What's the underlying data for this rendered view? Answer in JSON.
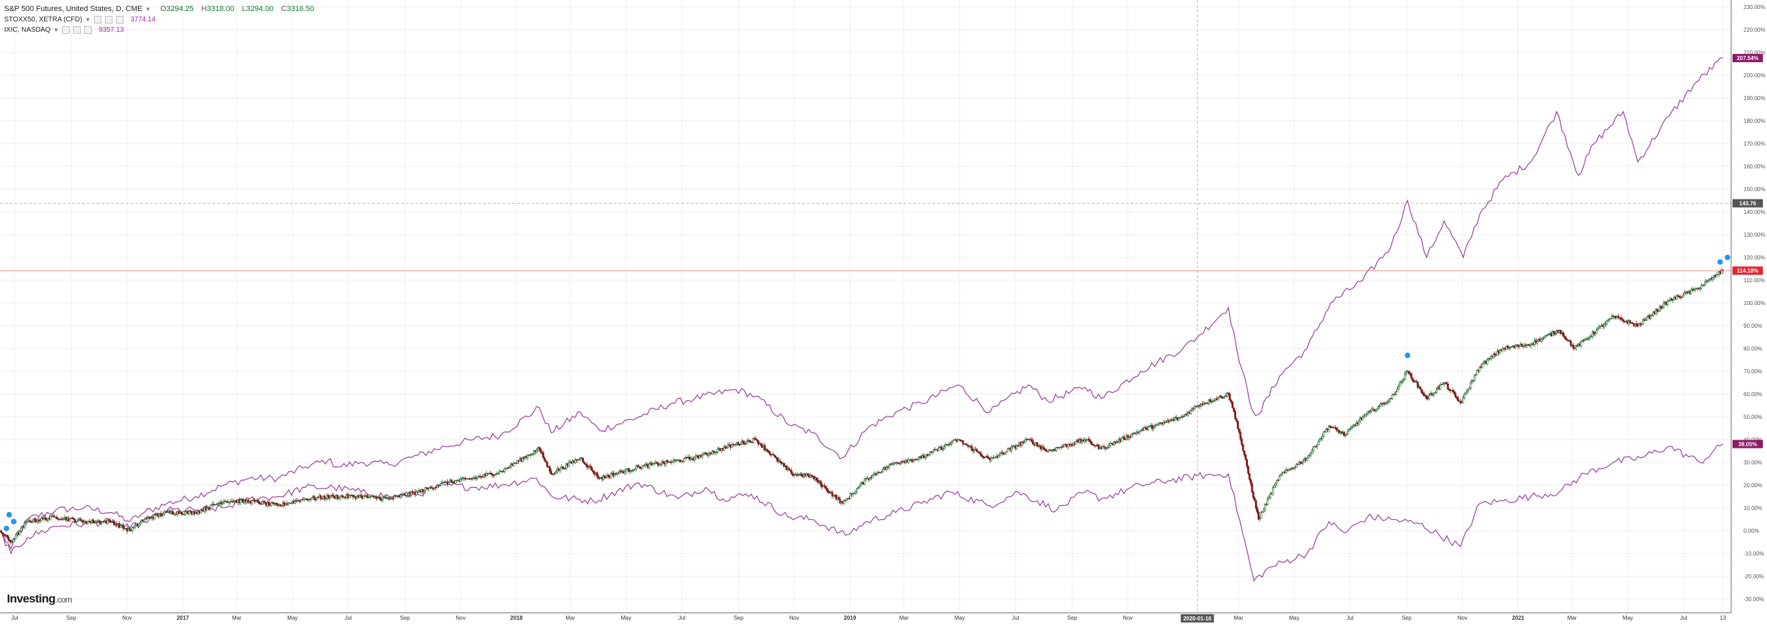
{
  "legend": {
    "main_symbol": "S&P 500 Futures, United States, D, CME",
    "ohlc": {
      "o_label": "O",
      "o": "3294.25",
      "h_label": "H",
      "h": "3318.00",
      "l_label": "L",
      "l": "3294.00",
      "c_label": "C",
      "c": "3316.50"
    },
    "compare1": {
      "symbol": "STOXX50, XETRA (CFD)",
      "value": "3774.14"
    },
    "compare2": {
      "symbol": "IXIC, NASDAQ",
      "value": "9357.13"
    }
  },
  "brand": {
    "name": "Investing",
    "suffix": ".com"
  },
  "crosshair_date": "2020-01-16",
  "price_badges": {
    "nasdaq": "207.54%",
    "crosshair": "143.76",
    "sp500": "114.18%",
    "stoxx": "38.05%"
  },
  "colors": {
    "compare_line": "#9c4aa3",
    "candle_up": "#1e7b34",
    "candle_down": "#8b1a1a",
    "price_line": "#f28b82",
    "badge_red": "#e8242f",
    "badge_purple": "#8e1a66",
    "badge_dark": "#555555",
    "grid": "#eeeeee"
  },
  "chart_data": {
    "type": "line",
    "y_axis": {
      "unit": "%",
      "min": -30,
      "max": 230,
      "tick_labels": [
        "-30.00%",
        "-20.00%",
        "-10.00%",
        "0.00%",
        "10.00%",
        "20.00%",
        "30.00%",
        "40.00%",
        "50.00%",
        "60.00%",
        "70.00%",
        "80.00%",
        "90.00%",
        "100.00%",
        "110.00%",
        "120.00%",
        "130.00%",
        "140.00%",
        "150.00%",
        "160.00%",
        "170.00%",
        "180.00%",
        "190.00%",
        "200.00%",
        "210.00%",
        "220.00%",
        "230.00%"
      ]
    },
    "x_axis": {
      "start": "2016-06-15",
      "end": "2021-08-22",
      "ticks": [
        {
          "date": "2016-07-01",
          "label": "Jul"
        },
        {
          "date": "2016-09-01",
          "label": "Sep"
        },
        {
          "date": "2016-11-01",
          "label": "Nov"
        },
        {
          "date": "2017-01-01",
          "label": "2017",
          "bold": true
        },
        {
          "date": "2017-03-01",
          "label": "Mar"
        },
        {
          "date": "2017-05-01",
          "label": "May"
        },
        {
          "date": "2017-07-01",
          "label": "Jul"
        },
        {
          "date": "2017-09-01",
          "label": "Sep"
        },
        {
          "date": "2017-11-01",
          "label": "Nov"
        },
        {
          "date": "2018-01-01",
          "label": "2018",
          "bold": true
        },
        {
          "date": "2018-03-01",
          "label": "Mar"
        },
        {
          "date": "2018-05-01",
          "label": "May"
        },
        {
          "date": "2018-07-01",
          "label": "Jul"
        },
        {
          "date": "2018-09-01",
          "label": "Sep"
        },
        {
          "date": "2018-11-01",
          "label": "Nov"
        },
        {
          "date": "2019-01-01",
          "label": "2019",
          "bold": true
        },
        {
          "date": "2019-03-01",
          "label": "Mar"
        },
        {
          "date": "2019-05-01",
          "label": "May"
        },
        {
          "date": "2019-07-01",
          "label": "Jul"
        },
        {
          "date": "2019-09-01",
          "label": "Sep"
        },
        {
          "date": "2019-11-01",
          "label": "Nov"
        },
        {
          "date": "2020-03-01",
          "label": "Mar"
        },
        {
          "date": "2020-05-01",
          "label": "May"
        },
        {
          "date": "2020-07-01",
          "label": "Jul"
        },
        {
          "date": "2020-09-01",
          "label": "Sep"
        },
        {
          "date": "2020-11-01",
          "label": "Nov"
        },
        {
          "date": "2021-01-01",
          "label": "2021",
          "bold": true
        },
        {
          "date": "2021-03-01",
          "label": "Mar"
        },
        {
          "date": "2021-05-01",
          "label": "May"
        },
        {
          "date": "2021-07-01",
          "label": "Jul"
        },
        {
          "date": "2021-08-13",
          "label": "13"
        }
      ]
    },
    "crosshair": {
      "date": "2020-01-16",
      "value": 143.76
    },
    "price_line_value": 114.18,
    "series": [
      {
        "name": "IXIC, NASDAQ",
        "style": "line",
        "points": [
          [
            "2016-06-15",
            0
          ],
          [
            "2016-06-27",
            -8
          ],
          [
            "2016-07-15",
            5
          ],
          [
            "2016-08-15",
            9
          ],
          [
            "2016-09-15",
            10
          ],
          [
            "2016-10-15",
            8
          ],
          [
            "2016-11-04",
            4
          ],
          [
            "2016-11-20",
            8
          ],
          [
            "2016-12-15",
            12
          ],
          [
            "2017-01-15",
            15
          ],
          [
            "2017-02-15",
            20
          ],
          [
            "2017-03-15",
            23
          ],
          [
            "2017-04-15",
            23
          ],
          [
            "2017-05-15",
            28
          ],
          [
            "2017-06-09",
            31
          ],
          [
            "2017-06-20",
            28
          ],
          [
            "2017-07-15",
            30
          ],
          [
            "2017-08-15",
            29
          ],
          [
            "2017-09-15",
            33
          ],
          [
            "2017-10-15",
            37
          ],
          [
            "2017-11-15",
            40
          ],
          [
            "2017-12-15",
            42
          ],
          [
            "2018-01-26",
            54
          ],
          [
            "2018-02-08",
            43
          ],
          [
            "2018-03-12",
            52
          ],
          [
            "2018-04-02",
            44
          ],
          [
            "2018-05-15",
            50
          ],
          [
            "2018-06-20",
            56
          ],
          [
            "2018-07-15",
            58
          ],
          [
            "2018-08-29",
            62
          ],
          [
            "2018-09-20",
            59
          ],
          [
            "2018-10-29",
            46
          ],
          [
            "2018-11-20",
            43
          ],
          [
            "2018-12-24",
            32
          ],
          [
            "2019-01-20",
            45
          ],
          [
            "2019-02-20",
            52
          ],
          [
            "2019-03-20",
            56
          ],
          [
            "2019-04-29",
            64
          ],
          [
            "2019-06-03",
            52
          ],
          [
            "2019-07-15",
            64
          ],
          [
            "2019-08-05",
            57
          ],
          [
            "2019-09-15",
            63
          ],
          [
            "2019-10-03",
            58
          ],
          [
            "2019-11-15",
            70
          ],
          [
            "2019-12-31",
            80
          ],
          [
            "2020-01-16",
            85
          ],
          [
            "2020-02-19",
            98
          ],
          [
            "2020-02-28",
            80
          ],
          [
            "2020-03-16",
            53
          ],
          [
            "2020-03-23",
            51
          ],
          [
            "2020-04-15",
            68
          ],
          [
            "2020-05-15",
            80
          ],
          [
            "2020-06-10",
            100
          ],
          [
            "2020-07-15",
            110
          ],
          [
            "2020-08-15",
            125
          ],
          [
            "2020-09-02",
            145
          ],
          [
            "2020-09-23",
            120
          ],
          [
            "2020-10-12",
            136
          ],
          [
            "2020-11-02",
            120
          ],
          [
            "2020-11-20",
            139
          ],
          [
            "2020-12-15",
            154
          ],
          [
            "2021-01-15",
            162
          ],
          [
            "2021-02-12",
            184
          ],
          [
            "2021-03-08",
            156
          ],
          [
            "2021-03-25",
            170
          ],
          [
            "2021-04-26",
            184
          ],
          [
            "2021-05-12",
            162
          ],
          [
            "2021-06-15",
            182
          ],
          [
            "2021-07-15",
            197
          ],
          [
            "2021-08-13",
            207.54
          ]
        ]
      },
      {
        "name": "STOXX50, XETRA (CFD)",
        "style": "line",
        "points": [
          [
            "2016-06-15",
            0
          ],
          [
            "2016-06-27",
            -10
          ],
          [
            "2016-07-15",
            -3
          ],
          [
            "2016-08-15",
            2
          ],
          [
            "2016-09-15",
            3
          ],
          [
            "2016-10-15",
            4
          ],
          [
            "2016-11-04",
            1
          ],
          [
            "2016-11-20",
            4
          ],
          [
            "2016-12-15",
            9
          ],
          [
            "2017-01-15",
            9
          ],
          [
            "2017-02-15",
            10
          ],
          [
            "2017-03-15",
            14
          ],
          [
            "2017-04-15",
            15
          ],
          [
            "2017-05-15",
            19
          ],
          [
            "2017-06-15",
            19
          ],
          [
            "2017-07-15",
            17
          ],
          [
            "2017-08-15",
            15
          ],
          [
            "2017-09-15",
            16
          ],
          [
            "2017-10-15",
            20
          ],
          [
            "2017-11-15",
            19
          ],
          [
            "2017-12-15",
            20
          ],
          [
            "2018-01-23",
            23
          ],
          [
            "2018-02-09",
            15
          ],
          [
            "2018-03-26",
            13
          ],
          [
            "2018-05-15",
            21
          ],
          [
            "2018-06-27",
            14
          ],
          [
            "2018-07-27",
            19
          ],
          [
            "2018-08-15",
            14
          ],
          [
            "2018-09-15",
            16
          ],
          [
            "2018-10-25",
            6
          ],
          [
            "2018-11-20",
            5
          ],
          [
            "2018-12-27",
            -2
          ],
          [
            "2019-01-20",
            4
          ],
          [
            "2019-02-20",
            8
          ],
          [
            "2019-03-20",
            12
          ],
          [
            "2019-04-20",
            17
          ],
          [
            "2019-06-03",
            11
          ],
          [
            "2019-07-04",
            17
          ],
          [
            "2019-08-15",
            9
          ],
          [
            "2019-09-15",
            17
          ],
          [
            "2019-10-03",
            14
          ],
          [
            "2019-11-15",
            20
          ],
          [
            "2019-12-15",
            22
          ],
          [
            "2020-01-16",
            24
          ],
          [
            "2020-02-19",
            25
          ],
          [
            "2020-03-18",
            -22
          ],
          [
            "2020-04-05",
            -16
          ],
          [
            "2020-05-15",
            -10
          ],
          [
            "2020-06-08",
            4
          ],
          [
            "2020-06-25",
            -1
          ],
          [
            "2020-07-20",
            6
          ],
          [
            "2020-08-15",
            5
          ],
          [
            "2020-09-15",
            3
          ],
          [
            "2020-10-30",
            -7
          ],
          [
            "2020-11-20",
            12
          ],
          [
            "2020-12-15",
            13
          ],
          [
            "2021-01-15",
            15
          ],
          [
            "2021-02-15",
            17
          ],
          [
            "2021-03-15",
            25
          ],
          [
            "2021-04-15",
            30
          ],
          [
            "2021-05-15",
            32
          ],
          [
            "2021-06-15",
            37
          ],
          [
            "2021-07-19",
            30
          ],
          [
            "2021-08-13",
            38.05
          ]
        ]
      },
      {
        "name": "S&P 500 Futures",
        "style": "candlestick",
        "points": [
          [
            "2016-06-15",
            0
          ],
          [
            "2016-06-27",
            -5
          ],
          [
            "2016-07-15",
            4
          ],
          [
            "2016-08-15",
            6
          ],
          [
            "2016-09-15",
            4
          ],
          [
            "2016-10-15",
            4
          ],
          [
            "2016-11-04",
            0
          ],
          [
            "2016-11-20",
            5
          ],
          [
            "2016-12-15",
            8
          ],
          [
            "2017-01-15",
            8
          ],
          [
            "2017-02-15",
            13
          ],
          [
            "2017-03-15",
            13
          ],
          [
            "2017-04-15",
            11
          ],
          [
            "2017-05-15",
            14
          ],
          [
            "2017-06-15",
            15
          ],
          [
            "2017-07-15",
            15
          ],
          [
            "2017-08-15",
            14
          ],
          [
            "2017-09-15",
            17
          ],
          [
            "2017-10-15",
            21
          ],
          [
            "2017-11-15",
            23
          ],
          [
            "2017-12-15",
            26
          ],
          [
            "2018-01-26",
            36
          ],
          [
            "2018-02-08",
            25
          ],
          [
            "2018-03-12",
            32
          ],
          [
            "2018-04-02",
            23
          ],
          [
            "2018-05-15",
            28
          ],
          [
            "2018-06-15",
            30
          ],
          [
            "2018-07-15",
            32
          ],
          [
            "2018-08-29",
            38
          ],
          [
            "2018-09-20",
            40
          ],
          [
            "2018-10-29",
            25
          ],
          [
            "2018-11-20",
            24
          ],
          [
            "2018-12-24",
            12
          ],
          [
            "2019-01-20",
            23
          ],
          [
            "2019-02-20",
            30
          ],
          [
            "2019-03-20",
            32
          ],
          [
            "2019-04-29",
            40
          ],
          [
            "2019-06-03",
            31
          ],
          [
            "2019-07-15",
            40
          ],
          [
            "2019-08-05",
            35
          ],
          [
            "2019-09-15",
            40
          ],
          [
            "2019-10-03",
            36
          ],
          [
            "2019-11-15",
            44
          ],
          [
            "2019-12-31",
            50
          ],
          [
            "2020-01-16",
            55
          ],
          [
            "2020-02-19",
            60
          ],
          [
            "2020-02-28",
            48
          ],
          [
            "2020-03-23",
            5
          ],
          [
            "2020-04-15",
            24
          ],
          [
            "2020-05-15",
            32
          ],
          [
            "2020-06-08",
            46
          ],
          [
            "2020-06-26",
            42
          ],
          [
            "2020-07-15",
            50
          ],
          [
            "2020-08-15",
            58
          ],
          [
            "2020-09-02",
            70
          ],
          [
            "2020-09-23",
            58
          ],
          [
            "2020-10-12",
            65
          ],
          [
            "2020-10-30",
            56
          ],
          [
            "2020-11-20",
            72
          ],
          [
            "2020-12-15",
            80
          ],
          [
            "2021-01-15",
            82
          ],
          [
            "2021-02-15",
            88
          ],
          [
            "2021-03-04",
            80
          ],
          [
            "2021-04-15",
            94
          ],
          [
            "2021-05-12",
            90
          ],
          [
            "2021-06-15",
            101
          ],
          [
            "2021-07-15",
            106
          ],
          [
            "2021-08-13",
            114.18
          ]
        ]
      }
    ]
  }
}
